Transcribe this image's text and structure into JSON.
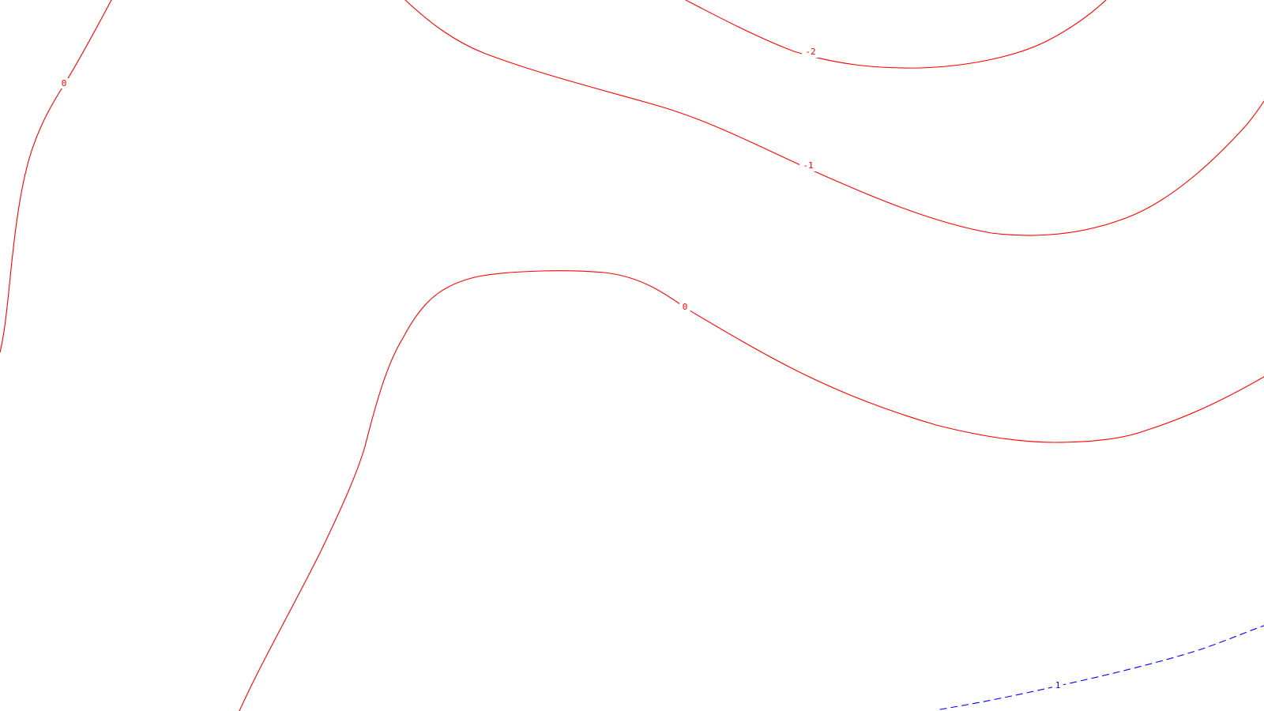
{
  "map": {
    "background": "#ffffff",
    "colors": {
      "negative_and_zero": "#ff0000",
      "positive": "#0000ff"
    },
    "contours": [
      {
        "id": "contour-0-left",
        "level": 0,
        "label": "0",
        "color": "#ff0000",
        "style": "solid"
      },
      {
        "id": "contour-neg2",
        "level": -2,
        "label": "-2",
        "color": "#ff0000",
        "style": "solid"
      },
      {
        "id": "contour-neg1",
        "level": -1,
        "label": "-1",
        "color": "#ff0000",
        "style": "solid"
      },
      {
        "id": "contour-0-center",
        "level": 0,
        "label": "0",
        "color": "#ff0000",
        "style": "solid"
      },
      {
        "id": "contour-pos1",
        "level": 1,
        "label": "1",
        "color": "#0000ff",
        "style": "dashed"
      }
    ]
  }
}
